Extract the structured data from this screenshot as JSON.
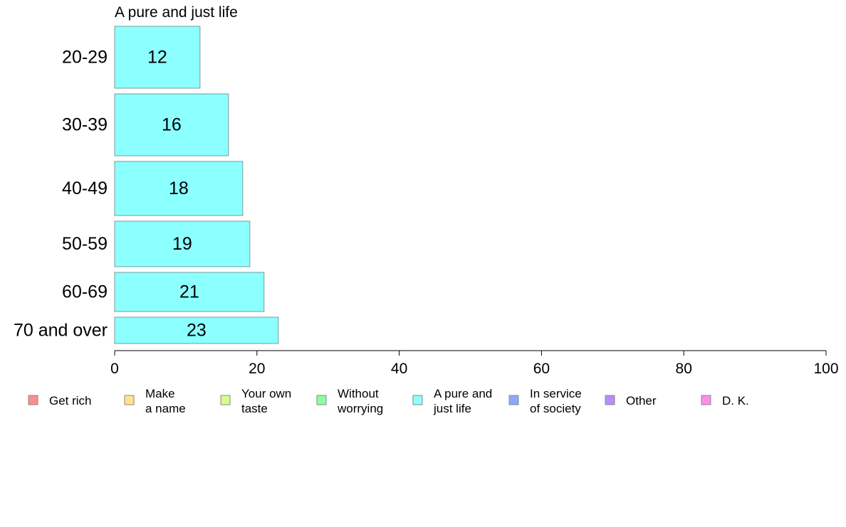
{
  "chart_data": {
    "type": "bar",
    "orientation": "horizontal",
    "title": "A pure and just life",
    "categories": [
      "20-29",
      "30-39",
      "40-49",
      "50-59",
      "60-69",
      "70 and over"
    ],
    "series": [
      {
        "name": "A pure and just life",
        "values": [
          12,
          16,
          18,
          19,
          21,
          23
        ]
      }
    ],
    "xlim": [
      0,
      100
    ],
    "x_ticks": [
      0,
      20,
      40,
      60,
      80,
      100
    ],
    "grid": false,
    "legend": [
      {
        "lines": [
          "Get rich"
        ],
        "color": "#ff8c8c"
      },
      {
        "lines": [
          "Make",
          "a name"
        ],
        "color": "#ffe38c"
      },
      {
        "lines": [
          "Your own",
          "taste"
        ],
        "color": "#d4ff8c"
      },
      {
        "lines": [
          "Without",
          "worrying"
        ],
        "color": "#8cff9f"
      },
      {
        "lines": [
          "A pure and",
          "just life"
        ],
        "color": "#8cffff"
      },
      {
        "lines": [
          "In service",
          "of society"
        ],
        "color": "#8ca8ff"
      },
      {
        "lines": [
          "Other"
        ],
        "color": "#b88cff"
      },
      {
        "lines": [
          "D. K."
        ],
        "color": "#ff8cee"
      }
    ],
    "legend_position": "bottom",
    "bar_color": "#8cffff",
    "bar_stroke": "#7a9a9a"
  }
}
